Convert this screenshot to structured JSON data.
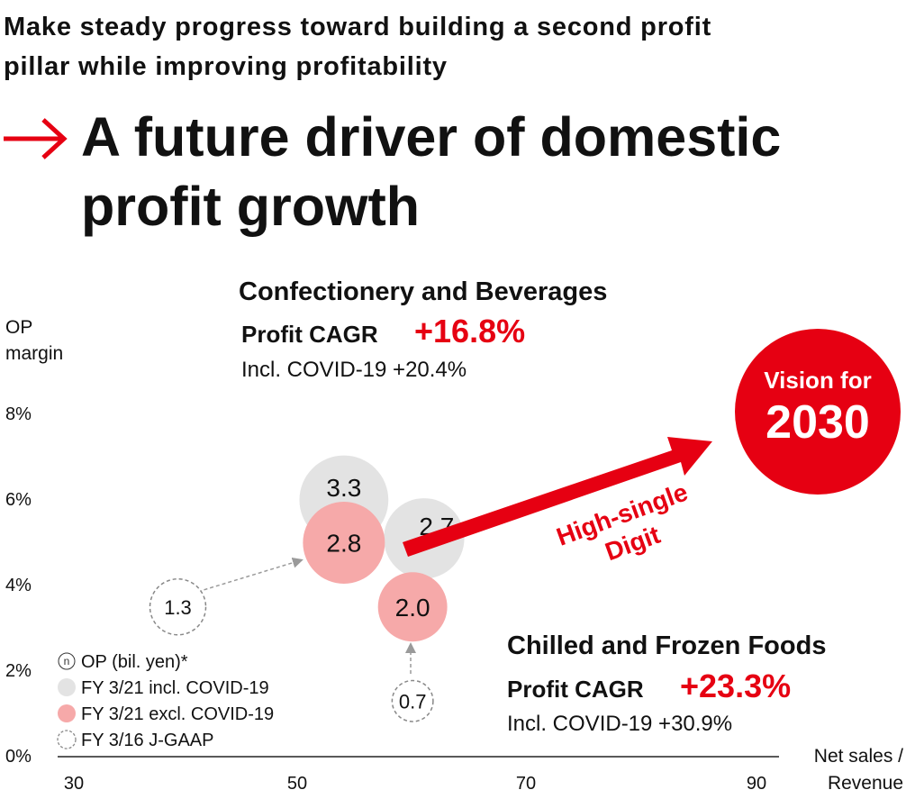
{
  "header": {
    "subtitle_line1": "Make steady progress toward building a second profit",
    "subtitle_line2": "pillar while improving profitability",
    "headline_line1": "A future driver of domestic",
    "headline_line2": "profit growth",
    "arrow_icon": "right-arrow-icon",
    "accent_color": "#e60012"
  },
  "chart_data": {
    "type": "scatter",
    "xlabel_line1": "Net sales /",
    "xlabel_line2": "Revenue",
    "ylabel_line1": "OP",
    "ylabel_line2": "margin",
    "x_ticks": [
      30,
      50,
      70,
      90
    ],
    "y_ticks": [
      "0%",
      "2%",
      "4%",
      "6%",
      "8%"
    ],
    "y_tick_values": [
      0,
      2,
      4,
      6,
      8
    ],
    "xlim": [
      29,
      92
    ],
    "ylim": [
      0,
      8
    ],
    "grid": false,
    "legend_position": "bottom-left",
    "bubble_size_meaning": "OP (bil. yen)",
    "series": [
      {
        "name": "FY 3/21 incl. COVID-19",
        "color": "#e3e3e3",
        "points": [
          {
            "x": 54,
            "y": 6.0,
            "op": 3.3,
            "label": "3.3"
          },
          {
            "x": 61,
            "y": 5.1,
            "op": 2.7,
            "label": "2.7"
          }
        ]
      },
      {
        "name": "FY 3/21 excl. COVID-19",
        "color": "#f6a9a9",
        "points": [
          {
            "x": 54,
            "y": 5.0,
            "op": 2.8,
            "label": "2.8"
          },
          {
            "x": 60,
            "y": 3.5,
            "op": 2.0,
            "label": "2.0"
          }
        ]
      },
      {
        "name": "FY 3/16 J-GAAP",
        "color": "#ffffff",
        "points": [
          {
            "x": 39.5,
            "y": 3.5,
            "op": 1.3,
            "label": "1.3"
          },
          {
            "x": 60,
            "y": 1.3,
            "op": 0.7,
            "label": "0.7"
          }
        ]
      }
    ],
    "legend": {
      "marker_n": "n",
      "op_label": "OP (bil. yen)*",
      "items": [
        "FY 3/21 incl. COVID-19",
        "FY 3/21 excl. COVID-19",
        "FY 3/16 J-GAAP"
      ]
    },
    "annotations": {
      "segment1": {
        "name": "Confectionery and Beverages",
        "cagr_label": "Profit CAGR",
        "cagr_value": "+16.8%",
        "incl_text": "Incl. COVID-19 +20.4%"
      },
      "segment2": {
        "name": "Chilled and Frozen Foods",
        "cagr_label": "Profit CAGR",
        "cagr_value": "+23.3%",
        "incl_text": "Incl. COVID-19 +30.9%"
      },
      "vision_line1": "Vision for",
      "vision_line2": "2030",
      "trend_line1": "High-single",
      "trend_line2": "Digit"
    }
  }
}
